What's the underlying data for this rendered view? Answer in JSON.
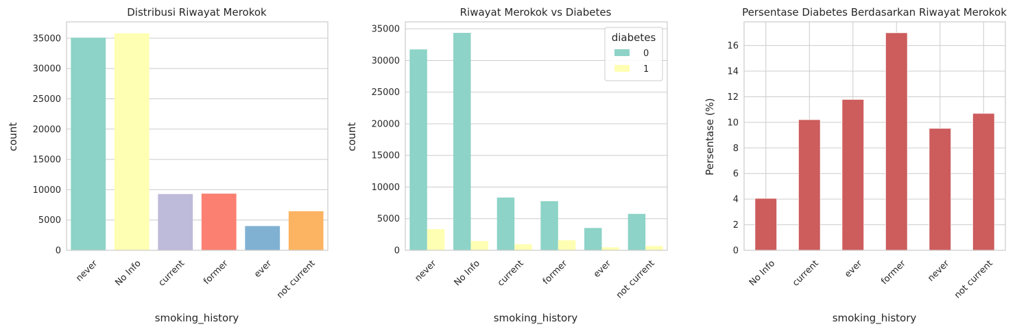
{
  "chart_data": [
    {
      "type": "bar",
      "title": "Distribusi Riwayat Merokok",
      "xlabel": "smoking_history",
      "ylabel": "count",
      "categories": [
        "never",
        "No Info",
        "current",
        "former",
        "ever",
        "not current"
      ],
      "values": [
        35095,
        35816,
        9286,
        9352,
        4004,
        6447
      ],
      "colors": [
        "#8dd3c7",
        "#ffffb3",
        "#bebada",
        "#fb8072",
        "#80b1d3",
        "#fdb462"
      ],
      "ylim": [
        0,
        37700
      ],
      "yticks": [
        0,
        5000,
        10000,
        15000,
        20000,
        25000,
        30000,
        35000
      ],
      "grid": true
    },
    {
      "type": "bar",
      "title": "Riwayat Merokok vs Diabetes",
      "xlabel": "smoking_history",
      "ylabel": "count",
      "categories": [
        "never",
        "No Info",
        "current",
        "former",
        "ever",
        "not current"
      ],
      "series": [
        {
          "name": "0",
          "values": [
            31749,
            34362,
            8338,
            7762,
            3532,
            5757
          ],
          "color": "#8dd3c7"
        },
        {
          "name": "1",
          "values": [
            3346,
            1454,
            948,
            1590,
            472,
            690
          ],
          "color": "#ffffb3"
        }
      ],
      "legend_title": "diabetes",
      "legend_position": "top-right",
      "ylim": [
        0,
        36100
      ],
      "yticks": [
        0,
        5000,
        10000,
        15000,
        20000,
        25000,
        30000,
        35000
      ],
      "grid": true
    },
    {
      "type": "bar",
      "title": "Persentase Diabetes Berdasarkan Riwayat Merokok",
      "xlabel": "smoking_history",
      "ylabel": "Persentase (%)",
      "categories": [
        "No Info",
        "current",
        "ever",
        "former",
        "never",
        "not current"
      ],
      "values": [
        4.06,
        10.21,
        11.79,
        17.0,
        9.53,
        10.7
      ],
      "colors": [
        "#cd5c5c",
        "#cd5c5c",
        "#cd5c5c",
        "#cd5c5c",
        "#cd5c5c",
        "#cd5c5c"
      ],
      "ylim": [
        0,
        17.85
      ],
      "yticks": [
        0,
        2,
        4,
        6,
        8,
        10,
        12,
        14,
        16
      ],
      "grid": true
    }
  ]
}
